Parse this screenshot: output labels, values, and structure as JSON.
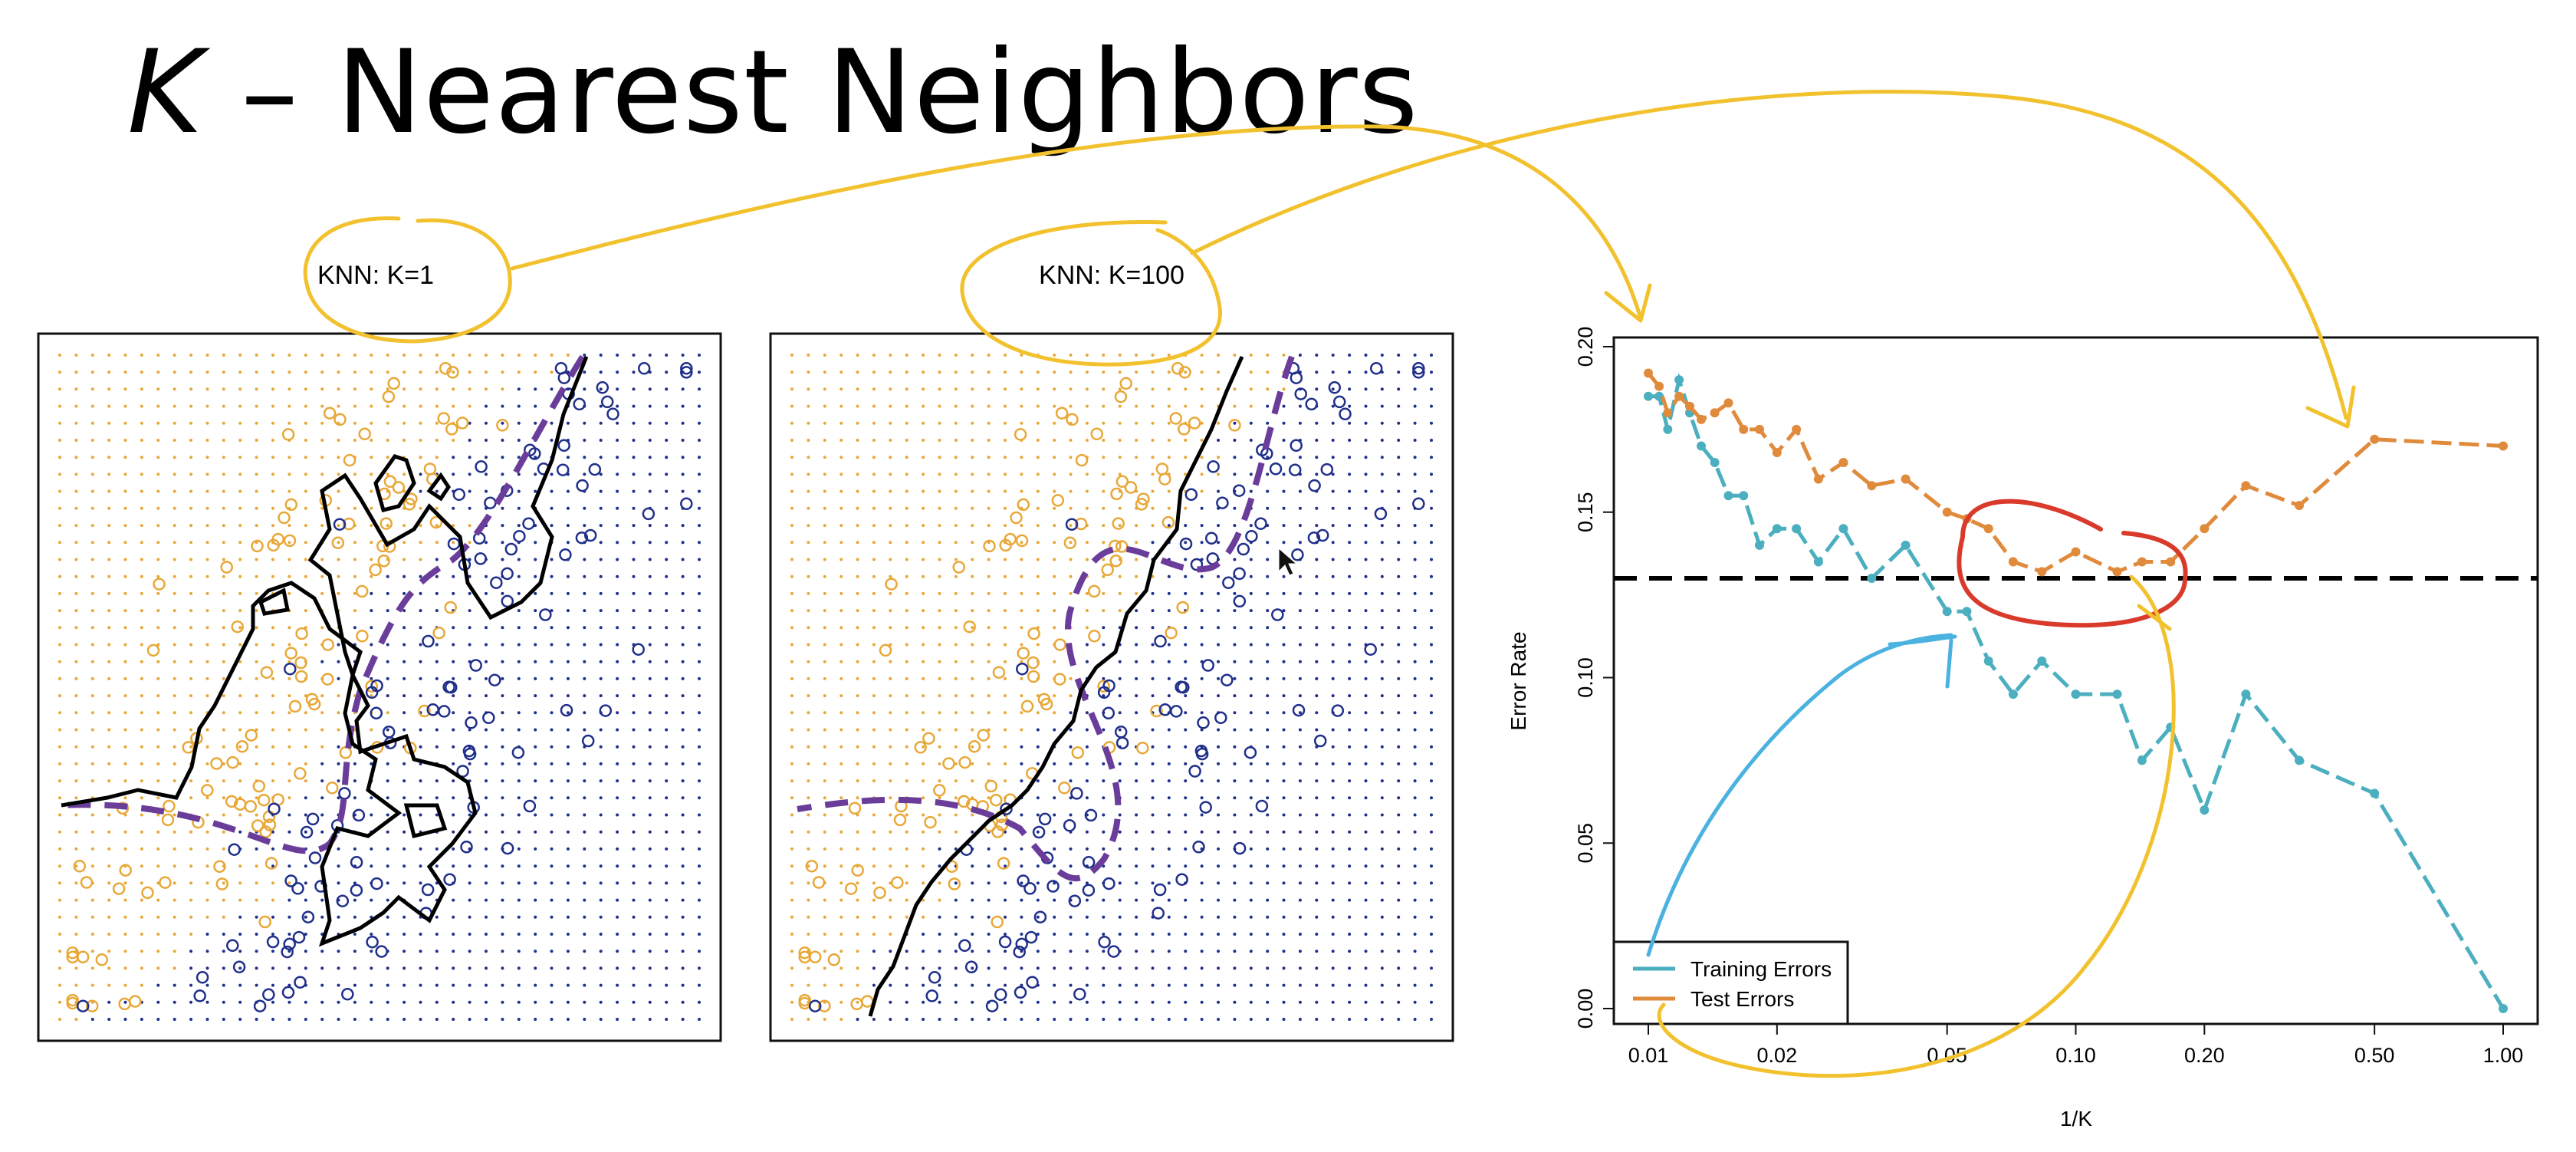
{
  "slide": {
    "title_k": "K",
    "title_rest": " – Nearest Neighbors"
  },
  "colors": {
    "orange_class": "#E8A838",
    "blue_class": "#1F2F8A",
    "boundary": "#000000",
    "bayes_boundary": "#6A3D9A",
    "training": "#4BAFBF",
    "test": "#E08A3C",
    "ink_yellow": "#F2C12E",
    "ink_red": "#D93A2B",
    "ink_blue": "#4BB2E0"
  },
  "chart_data": [
    {
      "type": "scatter",
      "title": "KNN: K=1",
      "description_only": false
    },
    {
      "type": "scatter",
      "title": "KNN: K=100"
    },
    {
      "type": "line",
      "title": "",
      "xlabel": "1/K",
      "ylabel": "Error Rate",
      "x_scale": "log",
      "xlim": [
        0.01,
        1.0
      ],
      "ylim": [
        0.0,
        0.2
      ],
      "x_ticks": [
        0.01,
        0.02,
        0.05,
        0.1,
        0.2,
        0.5,
        1.0
      ],
      "x_tick_labels": [
        "0.01",
        "0.02",
        "0.05",
        "0.10",
        "0.20",
        "0.50",
        "1.00"
      ],
      "y_ticks": [
        0.0,
        0.05,
        0.1,
        0.15,
        0.2
      ],
      "y_tick_labels": [
        "0.00",
        "0.05",
        "0.10",
        "0.15",
        "0.20"
      ],
      "hline": 0.13,
      "grid": false,
      "legend": "bottom-left",
      "series": [
        {
          "name": "Training Errors",
          "x": [
            0.01,
            0.0106,
            0.0111,
            0.0118,
            0.0125,
            0.0133,
            0.0143,
            0.0154,
            0.0167,
            0.0182,
            0.02,
            0.0222,
            0.025,
            0.0286,
            0.0333,
            0.04,
            0.05,
            0.0556,
            0.0625,
            0.0714,
            0.0833,
            0.1,
            0.125,
            0.1429,
            0.1667,
            0.2,
            0.25,
            0.3333,
            0.5,
            1.0
          ],
          "y": [
            0.185,
            0.185,
            0.175,
            0.19,
            0.18,
            0.17,
            0.165,
            0.155,
            0.155,
            0.14,
            0.145,
            0.145,
            0.135,
            0.145,
            0.13,
            0.14,
            0.12,
            0.12,
            0.105,
            0.095,
            0.105,
            0.095,
            0.095,
            0.075,
            0.085,
            0.06,
            0.095,
            0.075,
            0.065,
            0.0
          ]
        },
        {
          "name": "Test Errors",
          "x": [
            0.01,
            0.0106,
            0.0111,
            0.0118,
            0.0125,
            0.0133,
            0.0143,
            0.0154,
            0.0167,
            0.0182,
            0.02,
            0.0222,
            0.025,
            0.0286,
            0.0333,
            0.04,
            0.05,
            0.0556,
            0.0625,
            0.0714,
            0.0833,
            0.1,
            0.125,
            0.1429,
            0.1667,
            0.2,
            0.25,
            0.3333,
            0.5,
            1.0
          ],
          "y": [
            0.192,
            0.188,
            0.18,
            0.185,
            0.182,
            0.178,
            0.18,
            0.183,
            0.175,
            0.175,
            0.168,
            0.175,
            0.16,
            0.165,
            0.158,
            0.16,
            0.15,
            0.148,
            0.145,
            0.135,
            0.132,
            0.138,
            0.132,
            0.135,
            0.135,
            0.145,
            0.158,
            0.152,
            0.172,
            0.17
          ]
        }
      ]
    }
  ]
}
